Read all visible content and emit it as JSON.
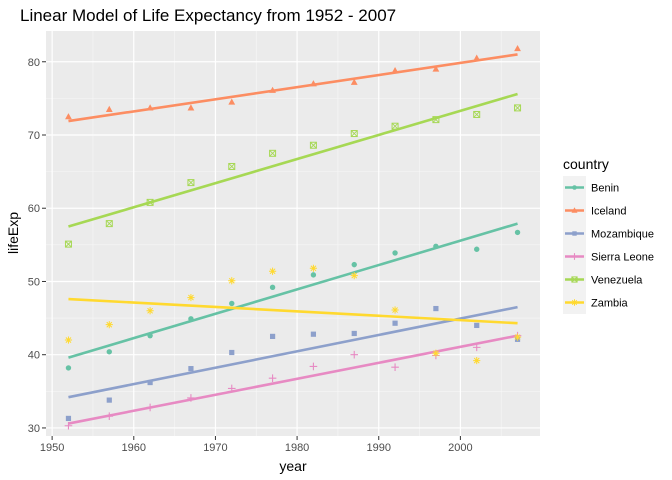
{
  "chart_data": {
    "type": "scatter",
    "title": "Linear Model of Life Expectancy from 1952 - 2007",
    "xlabel": "year",
    "ylabel": "lifeExp",
    "xlim": [
      1949.25,
      2009.75
    ],
    "ylim": [
      28.9,
      84.2
    ],
    "xticks": [
      1950,
      1960,
      1970,
      1980,
      1990,
      2000
    ],
    "yticks": [
      30,
      40,
      50,
      60,
      70,
      80
    ],
    "grid": true,
    "legend": {
      "title": "country",
      "position": "right"
    },
    "x": [
      1952,
      1957,
      1962,
      1967,
      1972,
      1977,
      1982,
      1987,
      1992,
      1997,
      2002,
      2007
    ],
    "series": [
      {
        "name": "Benin",
        "color": "#66c2a5",
        "shape": "circle",
        "values": [
          38.2,
          40.4,
          42.6,
          44.9,
          47.0,
          49.2,
          50.9,
          52.3,
          53.9,
          54.8,
          54.4,
          56.7
        ],
        "fit": [
          39.6,
          57.9
        ]
      },
      {
        "name": "Iceland",
        "color": "#fc8d62",
        "shape": "triangle",
        "values": [
          72.5,
          73.5,
          73.7,
          73.7,
          74.5,
          76.1,
          77.0,
          77.2,
          78.8,
          79.0,
          80.5,
          81.8
        ],
        "fit": [
          71.9,
          81.0
        ]
      },
      {
        "name": "Mozambique",
        "color": "#8da0cb",
        "shape": "square",
        "values": [
          31.3,
          33.8,
          36.2,
          38.1,
          40.3,
          42.5,
          42.8,
          42.9,
          44.3,
          46.3,
          44.0,
          42.1
        ],
        "fit": [
          34.2,
          46.5
        ]
      },
      {
        "name": "Sierra Leone",
        "color": "#e78ac3",
        "shape": "plus",
        "values": [
          30.3,
          31.6,
          32.8,
          34.1,
          35.4,
          36.8,
          38.4,
          40.0,
          38.3,
          39.9,
          41.0,
          42.6
        ],
        "fit": [
          30.6,
          42.6
        ]
      },
      {
        "name": "Venezuela",
        "color": "#a6d854",
        "shape": "boxx",
        "values": [
          55.1,
          57.9,
          60.8,
          63.5,
          65.7,
          67.5,
          68.6,
          70.2,
          71.2,
          72.1,
          72.8,
          73.7
        ],
        "fit": [
          57.5,
          75.6
        ]
      },
      {
        "name": "Zambia",
        "color": "#ffd92f",
        "shape": "asterisk",
        "values": [
          42.0,
          44.1,
          46.0,
          47.8,
          50.1,
          51.4,
          51.8,
          50.8,
          46.1,
          40.2,
          39.2,
          42.4
        ],
        "fit": [
          47.6,
          44.3
        ]
      }
    ]
  }
}
